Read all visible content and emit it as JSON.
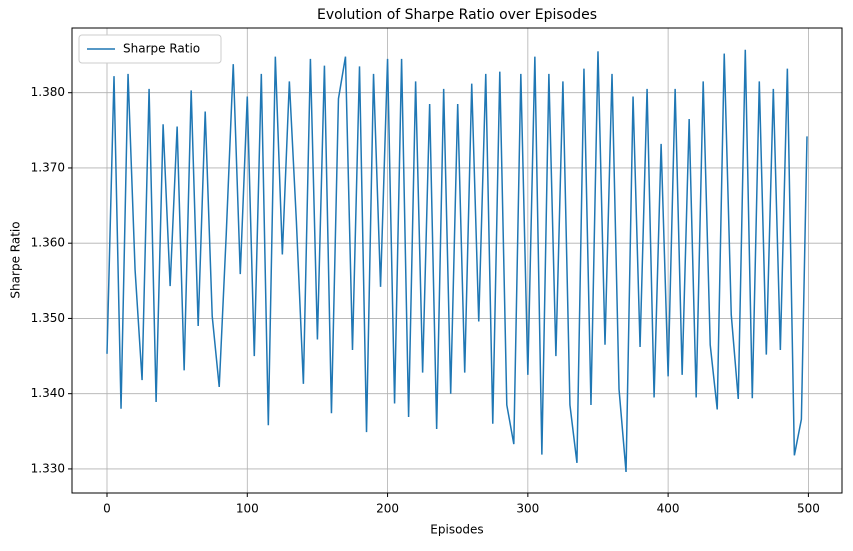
{
  "chart_data": {
    "type": "line",
    "title": "Evolution of Sharpe Ratio over Episodes",
    "xlabel": "Episodes",
    "ylabel": "Sharpe Ratio",
    "x": [
      0,
      5,
      10,
      15,
      20,
      25,
      30,
      35,
      40,
      45,
      50,
      55,
      60,
      65,
      70,
      75,
      80,
      85,
      90,
      95,
      100,
      105,
      110,
      115,
      120,
      125,
      130,
      135,
      140,
      145,
      150,
      155,
      160,
      165,
      170,
      175,
      180,
      185,
      190,
      195,
      200,
      205,
      210,
      215,
      220,
      225,
      230,
      235,
      240,
      245,
      250,
      255,
      260,
      265,
      270,
      275,
      280,
      285,
      290,
      295,
      300,
      305,
      310,
      315,
      320,
      325,
      330,
      335,
      340,
      345,
      350,
      355,
      360,
      365,
      370,
      375,
      380,
      385,
      390,
      395,
      400,
      405,
      410,
      415,
      420,
      425,
      430,
      435,
      440,
      445,
      450,
      455,
      460,
      465,
      470,
      475,
      480,
      485,
      490,
      495,
      499
    ],
    "series": [
      {
        "name": "Sharpe Ratio",
        "color": "#1f77b4",
        "values": [
          1.3453,
          1.3822,
          1.338,
          1.3825,
          1.3565,
          1.3418,
          1.3805,
          1.3389,
          1.3758,
          1.3543,
          1.3755,
          1.3431,
          1.3803,
          1.349,
          1.3775,
          1.3503,
          1.3409,
          1.3612,
          1.3838,
          1.3559,
          1.3795,
          1.345,
          1.3825,
          1.3358,
          1.3848,
          1.3585,
          1.3815,
          1.3629,
          1.3413,
          1.3845,
          1.3472,
          1.3836,
          1.3374,
          1.3792,
          1.3848,
          1.3458,
          1.3835,
          1.3349,
          1.3825,
          1.3542,
          1.3845,
          1.3387,
          1.3845,
          1.3369,
          1.3815,
          1.3428,
          1.3785,
          1.3353,
          1.3805,
          1.34,
          1.3785,
          1.3428,
          1.3812,
          1.3496,
          1.3825,
          1.336,
          1.3828,
          1.3385,
          1.3333,
          1.3825,
          1.3425,
          1.3848,
          1.3319,
          1.3825,
          1.345,
          1.3815,
          1.3385,
          1.3308,
          1.3832,
          1.3385,
          1.3855,
          1.3465,
          1.3825,
          1.3406,
          1.3296,
          1.3795,
          1.3462,
          1.3805,
          1.3395,
          1.3732,
          1.3423,
          1.3805,
          1.3425,
          1.3765,
          1.3395,
          1.3815,
          1.3465,
          1.3379,
          1.3852,
          1.3505,
          1.3393,
          1.3857,
          1.3394,
          1.3815,
          1.3452,
          1.3805,
          1.3458,
          1.3832,
          1.3318,
          1.3366,
          1.3742
        ]
      }
    ],
    "xlim": [
      -24.95,
      523.95
    ],
    "xticks": [
      0,
      100,
      200,
      300,
      400,
      500
    ],
    "ylim": [
      1.3268,
      1.3886
    ],
    "yticks": [
      {
        "value": 1.33,
        "label": "1.330"
      },
      {
        "value": 1.34,
        "label": "1.340"
      },
      {
        "value": 1.35,
        "label": "1.350"
      },
      {
        "value": 1.36,
        "label": "1.360"
      },
      {
        "value": 1.37,
        "label": "1.370"
      },
      {
        "value": 1.38,
        "label": "1.380"
      }
    ],
    "grid": true,
    "legend": "upper-left"
  }
}
